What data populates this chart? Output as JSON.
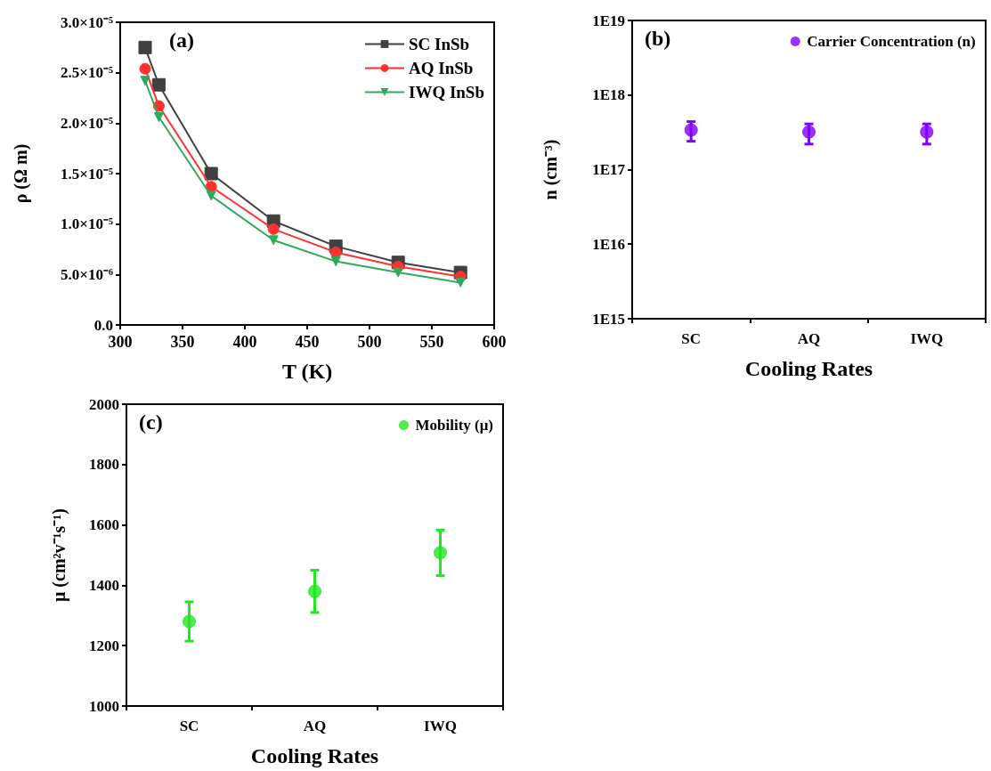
{
  "chart_data": [
    {
      "type": "line",
      "xlabel": "T (K)",
      "ylabel": "ρ (Ω m)",
      "annotations": [
        "(a)"
      ],
      "legend": "top right",
      "grid": false,
      "line_style": "solid",
      "x": [
        320,
        331,
        373,
        423,
        473,
        523,
        573
      ],
      "xlim": [
        300,
        600
      ],
      "xticks": [
        300,
        350,
        400,
        450,
        500,
        550,
        600
      ],
      "ylim": [
        0,
        3e-05
      ],
      "yticks": [
        {
          "value": 0,
          "label": "0.0"
        },
        {
          "value": 5e-06,
          "label": "5.0×10⁻⁶"
        },
        {
          "value": 1e-05,
          "label": "1.0×10⁻⁵"
        },
        {
          "value": 1.5e-05,
          "label": "1.5×10⁻⁵"
        },
        {
          "value": 2e-05,
          "label": "2.0×10⁻⁵"
        },
        {
          "value": 2.5e-05,
          "label": "2.5×10⁻⁵"
        },
        {
          "value": 3e-05,
          "label": "3.0×10⁻⁵"
        }
      ],
      "series": [
        {
          "name": "SC InSb",
          "color": "#404040",
          "marker": "square",
          "values": [
            2.75e-05,
            2.38e-05,
            1.5e-05,
            1.03e-05,
            7.8e-06,
            6.2e-06,
            5.2e-06
          ]
        },
        {
          "name": "AQ InSb",
          "color": "#ff3030",
          "marker": "circle",
          "values": [
            2.54e-05,
            2.17e-05,
            1.37e-05,
            9.5e-06,
            7.2e-06,
            5.8e-06,
            4.8e-06
          ]
        },
        {
          "name": "IWQ InSb",
          "color": "#2eaa5a",
          "marker": "triangle-down",
          "values": [
            2.42e-05,
            2.06e-05,
            1.28e-05,
            8.4e-06,
            6.3e-06,
            5.2e-06,
            4.2e-06
          ]
        }
      ]
    },
    {
      "type": "scatter",
      "xlabel": "Cooling Rates",
      "ylabel": "n (cm⁻³)",
      "annotations": [
        "(b)"
      ],
      "legend": "top right",
      "grid": false,
      "log": "y",
      "marker": "circle",
      "categories": [
        "SC",
        "AQ",
        "IWQ"
      ],
      "ylim": [
        1000000000000000.0,
        1e+19
      ],
      "yticks": [
        {
          "value": 1000000000000000.0,
          "label": "1E15"
        },
        {
          "value": 1e+16,
          "label": "1E16"
        },
        {
          "value": 1e+17,
          "label": "1E17"
        },
        {
          "value": 1e+18,
          "label": "1E18"
        },
        {
          "value": 1e+19,
          "label": "1E19"
        }
      ],
      "series": [
        {
          "name": "Carrier Concentration (n)",
          "color": "#8000ff",
          "values": [
            3.4e+17,
            3.2e+17,
            3.2e+17
          ],
          "errors": [
            [
              2.4e+17,
              4.4e+17
            ],
            [
              2.2e+17,
              4.1e+17
            ],
            [
              2.2e+17,
              4.1e+17
            ]
          ]
        }
      ]
    },
    {
      "type": "scatter",
      "xlabel": "Cooling Rates",
      "ylabel": "μ (cm²v⁻¹s⁻¹)",
      "annotations": [
        "(c)"
      ],
      "legend": "top right",
      "grid": false,
      "marker": "circle",
      "categories": [
        "SC",
        "AQ",
        "IWQ"
      ],
      "ylim": [
        1000,
        2000
      ],
      "yticks": [
        1000,
        1200,
        1400,
        1600,
        1800,
        2000
      ],
      "series": [
        {
          "name": "Mobility (μ)",
          "color": "#22e622",
          "values": [
            1280,
            1380,
            1508
          ],
          "errors": [
            [
              1215,
              1345
            ],
            [
              1310,
              1450
            ],
            [
              1432,
              1583
            ]
          ]
        }
      ]
    }
  ]
}
